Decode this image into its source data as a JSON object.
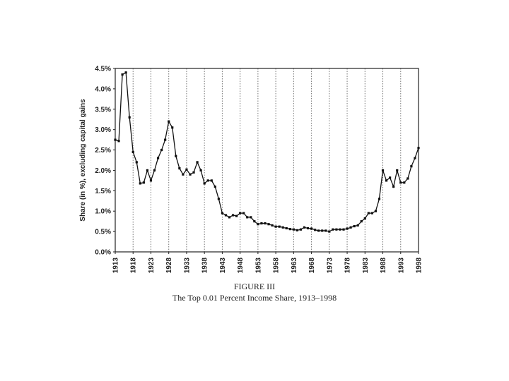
{
  "chart_data": {
    "type": "line",
    "figure_label": "FIGURE III",
    "title": "The Top 0.01 Percent Income Share, 1913–1998",
    "y_label": "Share (in %), excluding capital gains",
    "x": [
      1913,
      1914,
      1915,
      1916,
      1917,
      1918,
      1919,
      1920,
      1921,
      1922,
      1923,
      1924,
      1925,
      1926,
      1927,
      1928,
      1929,
      1930,
      1931,
      1932,
      1933,
      1934,
      1935,
      1936,
      1937,
      1938,
      1939,
      1940,
      1941,
      1942,
      1943,
      1944,
      1945,
      1946,
      1947,
      1948,
      1949,
      1950,
      1951,
      1952,
      1953,
      1954,
      1955,
      1956,
      1957,
      1958,
      1959,
      1960,
      1961,
      1962,
      1963,
      1964,
      1965,
      1966,
      1967,
      1968,
      1969,
      1970,
      1971,
      1972,
      1973,
      1974,
      1975,
      1976,
      1977,
      1978,
      1979,
      1980,
      1981,
      1982,
      1983,
      1984,
      1985,
      1986,
      1987,
      1988,
      1989,
      1990,
      1991,
      1992,
      1993,
      1994,
      1995,
      1996,
      1997,
      1998
    ],
    "values": [
      2.75,
      2.72,
      4.35,
      4.4,
      3.3,
      2.45,
      2.2,
      1.68,
      1.7,
      2.0,
      1.75,
      2.0,
      2.3,
      2.5,
      2.75,
      3.2,
      3.05,
      2.35,
      2.05,
      1.9,
      2.02,
      1.9,
      1.95,
      2.2,
      2.0,
      1.68,
      1.75,
      1.75,
      1.6,
      1.3,
      0.95,
      0.9,
      0.85,
      0.9,
      0.88,
      0.95,
      0.95,
      0.85,
      0.85,
      0.75,
      0.68,
      0.7,
      0.7,
      0.68,
      0.65,
      0.62,
      0.62,
      0.6,
      0.58,
      0.56,
      0.55,
      0.53,
      0.55,
      0.6,
      0.58,
      0.57,
      0.54,
      0.52,
      0.52,
      0.52,
      0.5,
      0.55,
      0.55,
      0.55,
      0.55,
      0.57,
      0.6,
      0.63,
      0.65,
      0.75,
      0.82,
      0.95,
      0.95,
      1.0,
      1.3,
      2.0,
      1.75,
      1.82,
      1.6,
      2.0,
      1.7,
      1.7,
      1.8,
      2.1,
      2.3,
      2.55
    ],
    "color": "#111111",
    "xlim": [
      1913,
      1998
    ],
    "xticks": [
      1913,
      1918,
      1923,
      1928,
      1933,
      1938,
      1943,
      1948,
      1953,
      1958,
      1963,
      1968,
      1973,
      1978,
      1983,
      1988,
      1993,
      1998
    ],
    "ylim": [
      0,
      4.5
    ],
    "yticks": [
      {
        "value": 0,
        "label": "0.0%"
      },
      {
        "value": 0.5,
        "label": "0.5%"
      },
      {
        "value": 1,
        "label": "1.0%"
      },
      {
        "value": 1.5,
        "label": "1.5%"
      },
      {
        "value": 2,
        "label": "2.0%"
      },
      {
        "value": 2.5,
        "label": "2.5%"
      },
      {
        "value": 3,
        "label": "3.0%"
      },
      {
        "value": 3.5,
        "label": "3.5%"
      },
      {
        "value": 4,
        "label": "4.0%"
      },
      {
        "value": 4.5,
        "label": "4.5%"
      }
    ],
    "grid": "x"
  }
}
